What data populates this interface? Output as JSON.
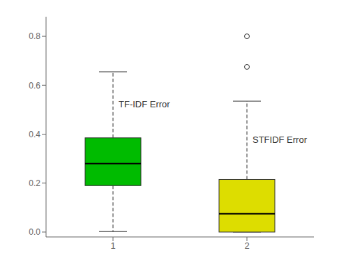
{
  "chart_data": {
    "type": "box",
    "categories": [
      "1",
      "2"
    ],
    "boxes": [
      {
        "q1": 0.19,
        "median": 0.28,
        "q3": 0.385,
        "whisker_low": 0.002,
        "whisker_high": 0.655,
        "outliers": []
      },
      {
        "q1": 0.0,
        "median": 0.075,
        "q3": 0.215,
        "whisker_low": 0.0,
        "whisker_high": 0.535,
        "outliers": [
          0.675,
          0.8
        ]
      }
    ],
    "colors": [
      "#00BB00",
      "#DDDD00"
    ],
    "annotations": [
      "TF-IDF Error",
      "STFIDF Error"
    ],
    "ylim": [
      -0.02,
      0.88
    ],
    "yticks": [
      {
        "value": 0.0,
        "label": "0.0"
      },
      0.2,
      0.4,
      0.6,
      0.8
    ],
    "grid": false,
    "line_style": "dashed",
    "marker": "circle"
  }
}
